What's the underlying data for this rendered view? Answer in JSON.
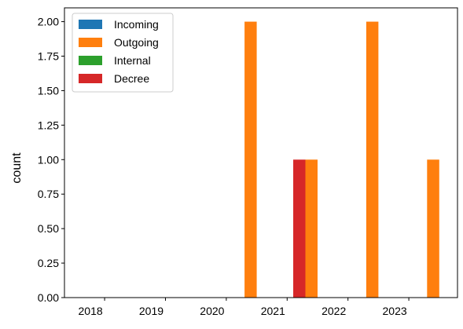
{
  "chart_data": {
    "type": "bar",
    "categories": [
      "2018",
      "2019",
      "2020",
      "2021",
      "2022",
      "2023"
    ],
    "series": [
      {
        "name": "Incoming",
        "color": "#1f77b4",
        "values": [
          0,
          0,
          0,
          0,
          0,
          0
        ]
      },
      {
        "name": "Outgoing",
        "color": "#ff7f0e",
        "values": [
          0,
          0,
          2,
          1,
          2,
          1
        ]
      },
      {
        "name": "Internal",
        "color": "#2ca02c",
        "values": [
          0,
          0,
          0,
          0,
          0,
          0
        ]
      },
      {
        "name": "Decree",
        "color": "#d62728",
        "values": [
          0,
          0,
          1,
          0,
          0,
          0
        ]
      }
    ],
    "title": "",
    "xlabel": "",
    "ylabel": "count",
    "ylim": [
      0,
      2.1
    ],
    "yticks": [
      0.0,
      0.25,
      0.5,
      0.75,
      1.0,
      1.25,
      1.5,
      1.75,
      2.0
    ],
    "ytick_labels": [
      "0.00",
      "0.25",
      "0.50",
      "0.75",
      "1.00",
      "1.25",
      "1.50",
      "1.75",
      "2.00"
    ],
    "grid": false,
    "legend_position": "top-left"
  }
}
